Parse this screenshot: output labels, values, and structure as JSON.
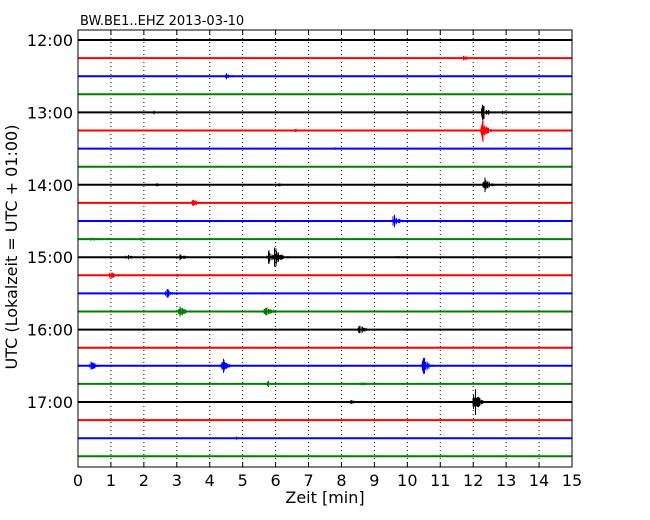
{
  "chart_data": {
    "type": "line",
    "title": "BW.BE1..EHZ 2013-03-10",
    "xlabel": "Zeit  [min]",
    "ylabel": "UTC (Lokalzeit = UTC + 01:00)",
    "xlim": [
      0,
      15
    ],
    "x_ticks": [
      "0",
      "1",
      "2",
      "3",
      "4",
      "5",
      "6",
      "7",
      "8",
      "9",
      "10",
      "11",
      "12",
      "13",
      "14",
      "15"
    ],
    "y_ticks": [
      {
        "label": "12:00",
        "row": 0
      },
      {
        "label": "13:00",
        "row": 4
      },
      {
        "label": "14:00",
        "row": 8
      },
      {
        "label": "15:00",
        "row": 12
      },
      {
        "label": "16:00",
        "row": 16
      },
      {
        "label": "17:00",
        "row": 20
      }
    ],
    "grid": "vertical dotted at each minute",
    "trace_colors": [
      "#000000",
      "#ff0000",
      "#0000ff",
      "#008000"
    ],
    "series": [
      {
        "start": "12:00",
        "events": [],
        "noise": 0.6
      },
      {
        "start": "12:15",
        "events": [
          {
            "t": 11.7,
            "amp": 3
          }
        ],
        "noise": 0.6
      },
      {
        "start": "12:30",
        "events": [
          {
            "t": 4.5,
            "amp": 3
          }
        ],
        "noise": 0.6
      },
      {
        "start": "12:45",
        "events": [],
        "noise": 0.6
      },
      {
        "start": "13:00",
        "events": [
          {
            "t": 2.3,
            "amp": 2
          },
          {
            "t": 12.3,
            "amp": 10
          },
          {
            "t": 12.9,
            "amp": 2
          }
        ],
        "noise": 0.6
      },
      {
        "start": "13:15",
        "events": [
          {
            "t": 6.6,
            "amp": 2
          },
          {
            "t": 12.3,
            "amp": 13
          }
        ],
        "noise": 0.6
      },
      {
        "start": "13:30",
        "events": [
          {
            "t": 7.8,
            "amp": 1.2
          }
        ],
        "noise": 0.6
      },
      {
        "start": "13:45",
        "events": [],
        "noise": 0.6
      },
      {
        "start": "14:00",
        "events": [
          {
            "t": 2.4,
            "amp": 2
          },
          {
            "t": 6.1,
            "amp": 1.5
          },
          {
            "t": 12.35,
            "amp": 9
          }
        ],
        "noise": 0.6
      },
      {
        "start": "14:15",
        "events": [
          {
            "t": 3.5,
            "amp": 6
          }
        ],
        "noise": 0.6
      },
      {
        "start": "14:30",
        "events": [
          {
            "t": 9.6,
            "amp": 9
          }
        ],
        "noise": 0.6
      },
      {
        "start": "14:45",
        "events": [
          {
            "t": 0.4,
            "amp": 3
          },
          {
            "t": 1.9,
            "amp": 2
          }
        ],
        "noise": 0.7
      },
      {
        "start": "15:00",
        "events": [
          {
            "t": 1.5,
            "amp": 2
          },
          {
            "t": 3.1,
            "amp": 4
          },
          {
            "t": 5.8,
            "amp": 8
          },
          {
            "t": 6.0,
            "amp": 13
          },
          {
            "t": 9.7,
            "amp": 1.5
          }
        ],
        "noise": 0.7
      },
      {
        "start": "15:15",
        "events": [
          {
            "t": 1.0,
            "amp": 5
          },
          {
            "t": 3.0,
            "amp": 1.5
          }
        ],
        "noise": 0.7
      },
      {
        "start": "15:30",
        "events": [
          {
            "t": 2.7,
            "amp": 6
          },
          {
            "t": 5.6,
            "amp": 1.5
          }
        ],
        "noise": 0.7
      },
      {
        "start": "15:45",
        "events": [
          {
            "t": 3.1,
            "amp": 8
          },
          {
            "t": 5.7,
            "amp": 9
          }
        ],
        "noise": 0.8
      },
      {
        "start": "16:00",
        "events": [
          {
            "t": 8.55,
            "amp": 6
          }
        ],
        "noise": 0.6
      },
      {
        "start": "16:15",
        "events": [],
        "noise": 0.6
      },
      {
        "start": "16:30",
        "events": [
          {
            "t": 0.4,
            "amp": 5
          },
          {
            "t": 4.4,
            "amp": 8
          },
          {
            "t": 10.5,
            "amp": 12
          }
        ],
        "noise": 0.7
      },
      {
        "start": "16:45",
        "events": [
          {
            "t": 5.75,
            "amp": 4
          },
          {
            "t": 8.6,
            "amp": 2
          }
        ],
        "noise": 0.6
      },
      {
        "start": "17:00",
        "events": [
          {
            "t": 8.3,
            "amp": 2
          },
          {
            "t": 12.05,
            "amp": 15
          }
        ],
        "noise": 0.6
      },
      {
        "start": "17:15",
        "events": [],
        "noise": 0.6
      },
      {
        "start": "17:30",
        "events": [
          {
            "t": 4.8,
            "amp": 1.5
          }
        ],
        "noise": 0.6
      },
      {
        "start": "17:45",
        "events": [],
        "noise": 0.6
      }
    ]
  }
}
